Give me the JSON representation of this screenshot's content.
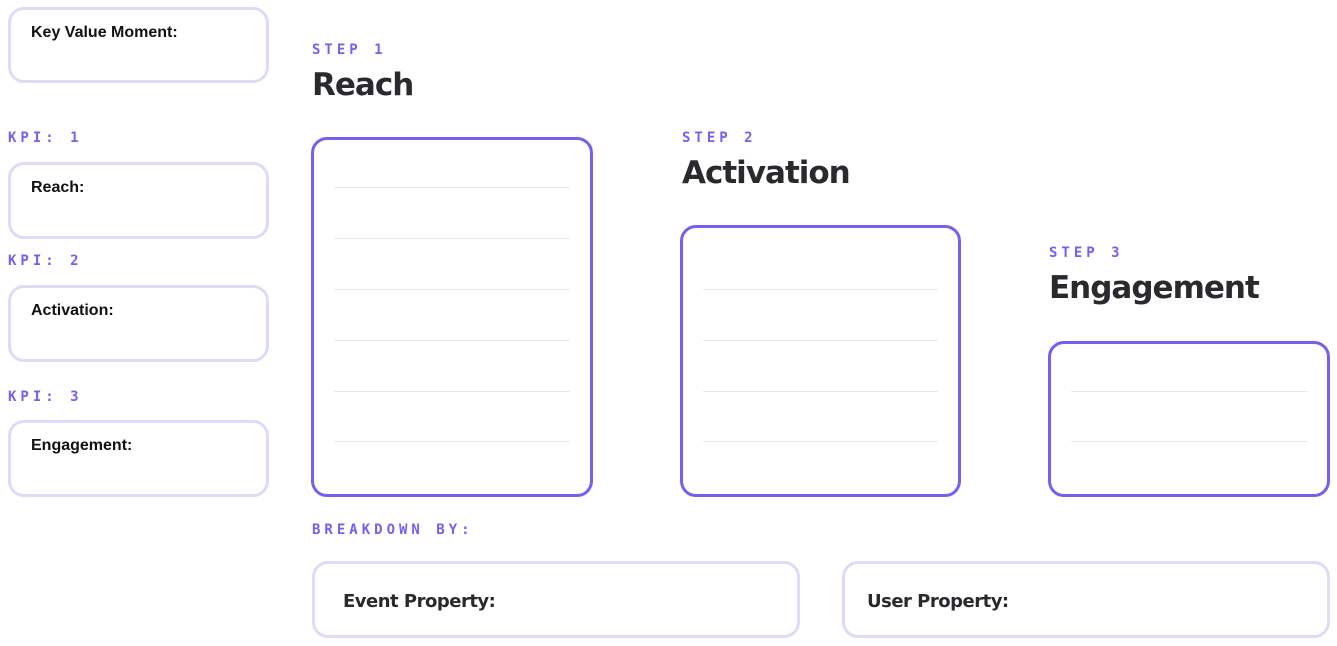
{
  "kpi_panel": {
    "key_value_moment": "Key Value Moment:",
    "kpis": [
      {
        "label": "KPI: 1",
        "field": "Reach:"
      },
      {
        "label": "KPI: 2",
        "field": "Activation:"
      },
      {
        "label": "KPI: 3",
        "field": "Engagement:"
      }
    ]
  },
  "steps": [
    {
      "label": "STEP 1",
      "title": "Reach"
    },
    {
      "label": "STEP 2",
      "title": "Activation"
    },
    {
      "label": "STEP 3",
      "title": "Engagement"
    }
  ],
  "breakdown": {
    "label": "BREAKDOWN BY:",
    "event_property": "Event Property:",
    "user_property": "User Property:"
  },
  "colors": {
    "accent": "#7b5cf0",
    "soft_border": "#dedbf8"
  }
}
